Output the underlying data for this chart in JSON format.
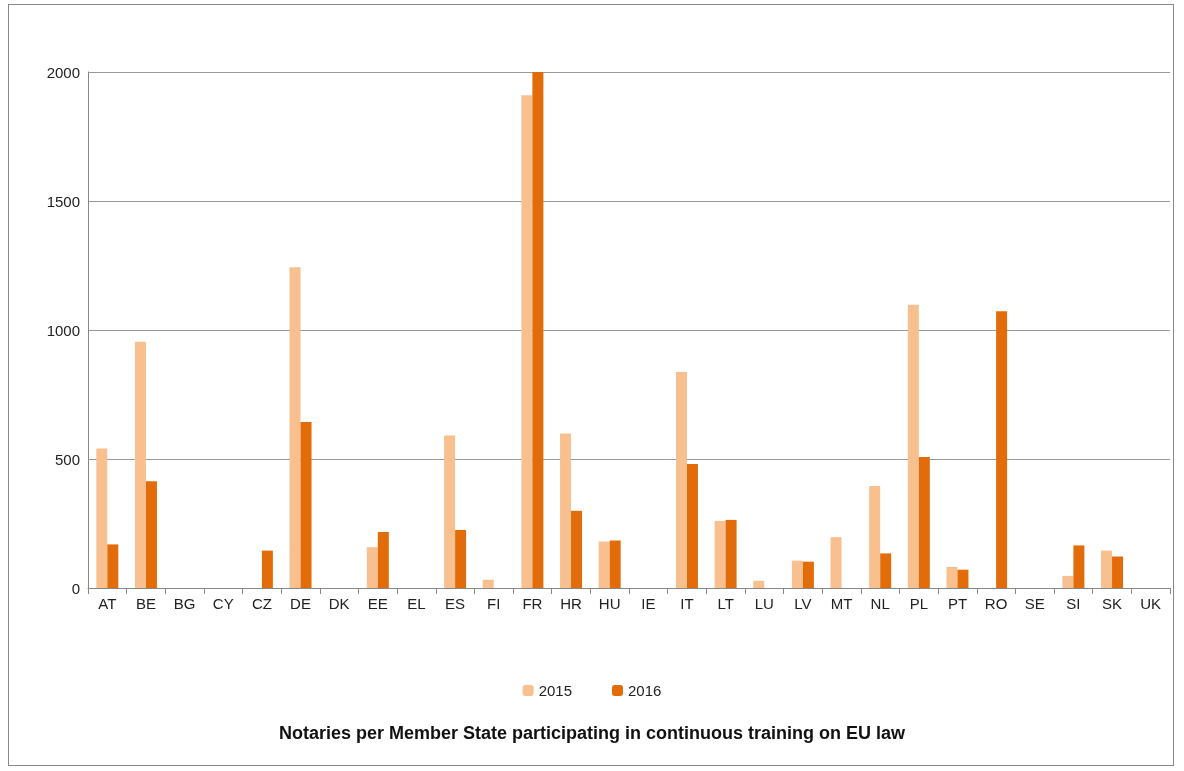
{
  "chart_data": {
    "type": "bar",
    "title": "Notaries per Member State participating in continuous training on EU law",
    "categories": [
      "AT",
      "BE",
      "BG",
      "CY",
      "CZ",
      "DE",
      "DK",
      "EE",
      "EL",
      "ES",
      "FI",
      "FR",
      "HR",
      "HU",
      "IE",
      "IT",
      "LT",
      "LU",
      "LV",
      "MT",
      "NL",
      "PL",
      "PT",
      "RO",
      "SE",
      "SI",
      "SK",
      "UK"
    ],
    "series": [
      {
        "name": "2015",
        "color": "#f9c08f",
        "values": [
          541,
          954,
          0,
          0,
          0,
          1243,
          0,
          158,
          0,
          591,
          32,
          1910,
          599,
          180,
          0,
          837,
          260,
          28,
          106,
          197,
          395,
          1098,
          82,
          0,
          0,
          47,
          145,
          0
        ]
      },
      {
        "name": "2016",
        "color": "#e36c0a",
        "values": [
          169,
          414,
          0,
          0,
          145,
          643,
          0,
          217,
          0,
          225,
          0,
          2000,
          299,
          184,
          0,
          481,
          264,
          0,
          102,
          0,
          134,
          508,
          71,
          1073,
          0,
          165,
          122,
          0
        ]
      }
    ],
    "ylim": [
      0,
      2000
    ],
    "yticks": [
      0,
      500,
      1000,
      1500,
      2000
    ],
    "grid": "y",
    "legend": "bottom"
  }
}
